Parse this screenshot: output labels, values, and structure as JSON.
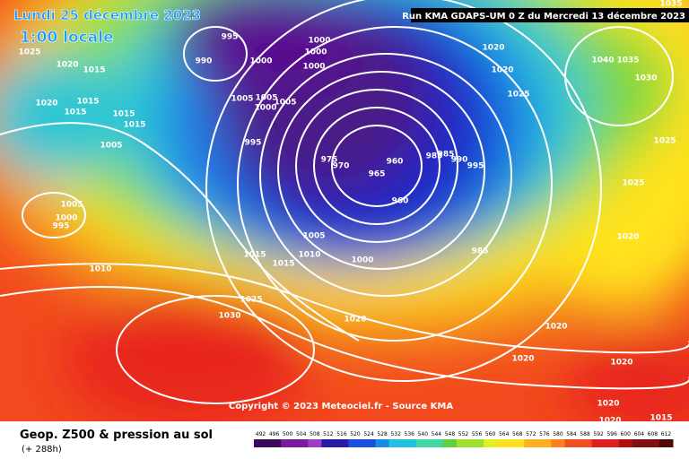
{
  "header": {
    "date": "Lundi 25 décembre 2023",
    "time": "1:00 locale",
    "run": "Run KMA GDAPS-UM 0 Z du Mercredi 13 décembre 2023",
    "copyright": "Copyright © 2023 Meteociel.fr - Source KMA"
  },
  "footer": {
    "title": "Geop. Z500 & pression au sol",
    "lead": "(+ 288h)",
    "scale": [
      492,
      496,
      500,
      504,
      508,
      512,
      516,
      520,
      524,
      528,
      532,
      536,
      540,
      544,
      548,
      552,
      556,
      560,
      564,
      568,
      572,
      576,
      580,
      584,
      588,
      592,
      596,
      600,
      604,
      608,
      612
    ]
  },
  "isobar_labels": [
    995,
    990,
    1000,
    1000,
    1000,
    1000,
    1025,
    1020,
    1015,
    1020,
    1015,
    1015,
    1015,
    1015,
    1005,
    1005,
    1005,
    1000,
    995,
    1005,
    975,
    970,
    965,
    960,
    960,
    985,
    985,
    990,
    995,
    1005,
    1000,
    995,
    1005,
    1010,
    1015,
    1015,
    1000,
    985,
    1010,
    1025,
    1030,
    1020,
    1020,
    1020,
    1020,
    1020,
    1020,
    1015,
    1020,
    1025,
    1025,
    1030,
    1040,
    1035,
    1025,
    1020,
    1020,
    1035
  ]
}
